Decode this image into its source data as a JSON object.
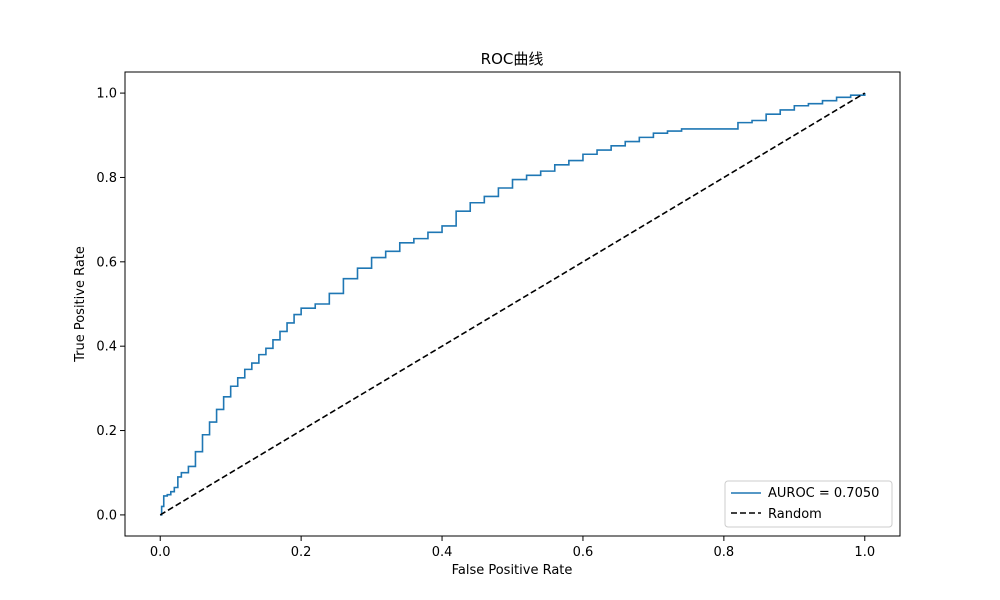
{
  "chart_data": {
    "type": "line",
    "title": "ROC曲线",
    "xlabel": "False Positive Rate",
    "ylabel": "True Positive Rate",
    "xlim": [
      -0.05,
      1.05
    ],
    "ylim": [
      -0.05,
      1.05
    ],
    "xticks": [
      "0.0",
      "0.2",
      "0.4",
      "0.6",
      "0.8",
      "1.0"
    ],
    "yticks": [
      "0.0",
      "0.2",
      "0.4",
      "0.6",
      "0.8",
      "1.0"
    ],
    "grid": false,
    "legend_position": "bottom-right",
    "series": [
      {
        "name": "AUROC = 0.7050",
        "color": "#1f77b4",
        "style": "solid",
        "x": [
          0.0,
          0.002,
          0.005,
          0.01,
          0.015,
          0.02,
          0.025,
          0.03,
          0.04,
          0.05,
          0.06,
          0.07,
          0.08,
          0.09,
          0.1,
          0.11,
          0.12,
          0.13,
          0.14,
          0.15,
          0.16,
          0.17,
          0.18,
          0.19,
          0.2,
          0.22,
          0.24,
          0.26,
          0.28,
          0.3,
          0.32,
          0.34,
          0.36,
          0.38,
          0.4,
          0.42,
          0.44,
          0.46,
          0.48,
          0.5,
          0.52,
          0.54,
          0.56,
          0.58,
          0.6,
          0.62,
          0.64,
          0.66,
          0.68,
          0.7,
          0.72,
          0.74,
          0.76,
          0.78,
          0.8,
          0.82,
          0.84,
          0.86,
          0.88,
          0.9,
          0.92,
          0.94,
          0.96,
          0.98,
          1.0
        ],
        "y": [
          0.0,
          0.02,
          0.045,
          0.048,
          0.055,
          0.065,
          0.09,
          0.1,
          0.115,
          0.15,
          0.19,
          0.22,
          0.25,
          0.28,
          0.305,
          0.325,
          0.345,
          0.36,
          0.38,
          0.395,
          0.415,
          0.435,
          0.455,
          0.475,
          0.49,
          0.5,
          0.525,
          0.56,
          0.585,
          0.61,
          0.625,
          0.645,
          0.655,
          0.67,
          0.685,
          0.72,
          0.74,
          0.755,
          0.775,
          0.795,
          0.805,
          0.815,
          0.83,
          0.84,
          0.855,
          0.865,
          0.875,
          0.885,
          0.895,
          0.905,
          0.91,
          0.915,
          0.915,
          0.915,
          0.915,
          0.93,
          0.935,
          0.95,
          0.96,
          0.97,
          0.975,
          0.982,
          0.99,
          0.995,
          1.0
        ]
      },
      {
        "name": "Random",
        "color": "#000000",
        "style": "dashed",
        "x": [
          0.0,
          1.0
        ],
        "y": [
          0.0,
          1.0
        ]
      }
    ]
  }
}
